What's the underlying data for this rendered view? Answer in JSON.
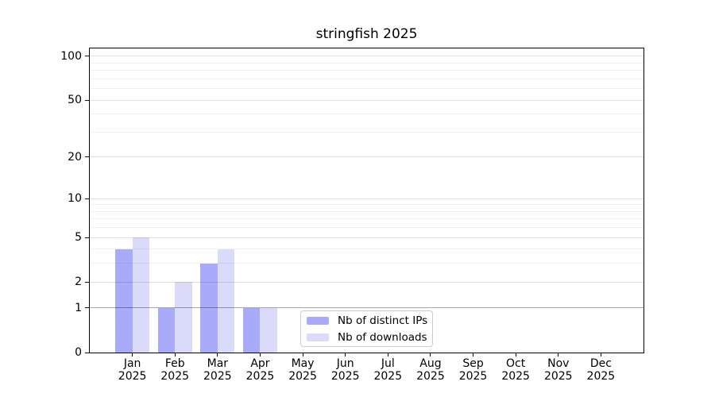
{
  "chart_data": {
    "type": "bar",
    "title": "stringfish 2025",
    "categories": [
      "Jan",
      "Feb",
      "Mar",
      "Apr",
      "May",
      "Jun",
      "Jul",
      "Aug",
      "Sep",
      "Oct",
      "Nov",
      "Dec"
    ],
    "year_label": "2025",
    "series": [
      {
        "name": "Nb of distinct IPs",
        "color": "#aaaafa",
        "values": [
          4,
          1,
          3,
          1,
          0,
          0,
          0,
          0,
          0,
          0,
          0,
          0
        ]
      },
      {
        "name": "Nb of downloads",
        "color": "#dadafa",
        "values": [
          5,
          2,
          4,
          1,
          0,
          0,
          0,
          0,
          0,
          0,
          0,
          0
        ]
      }
    ],
    "xlabel": "",
    "ylabel": "",
    "yscale": "log1p",
    "ylim": [
      0,
      113
    ],
    "y_major_ticks": [
      0,
      1,
      2,
      5,
      10,
      20,
      50,
      100
    ],
    "y_minor_ticks": [
      3,
      4,
      6,
      7,
      8,
      9,
      30,
      40,
      60,
      70,
      80,
      90
    ],
    "grid": "horizontal",
    "legend_position": "inside-lower-center"
  },
  "colors": {
    "background": "#ffffff",
    "axis": "#000000",
    "grid_major": "rgba(0,0,0,0.12)",
    "grid_minor": "rgba(0,0,0,0.06)",
    "grid_emphasis": "rgba(0,0,0,0.35)",
    "legend_border": "#cccccc"
  }
}
